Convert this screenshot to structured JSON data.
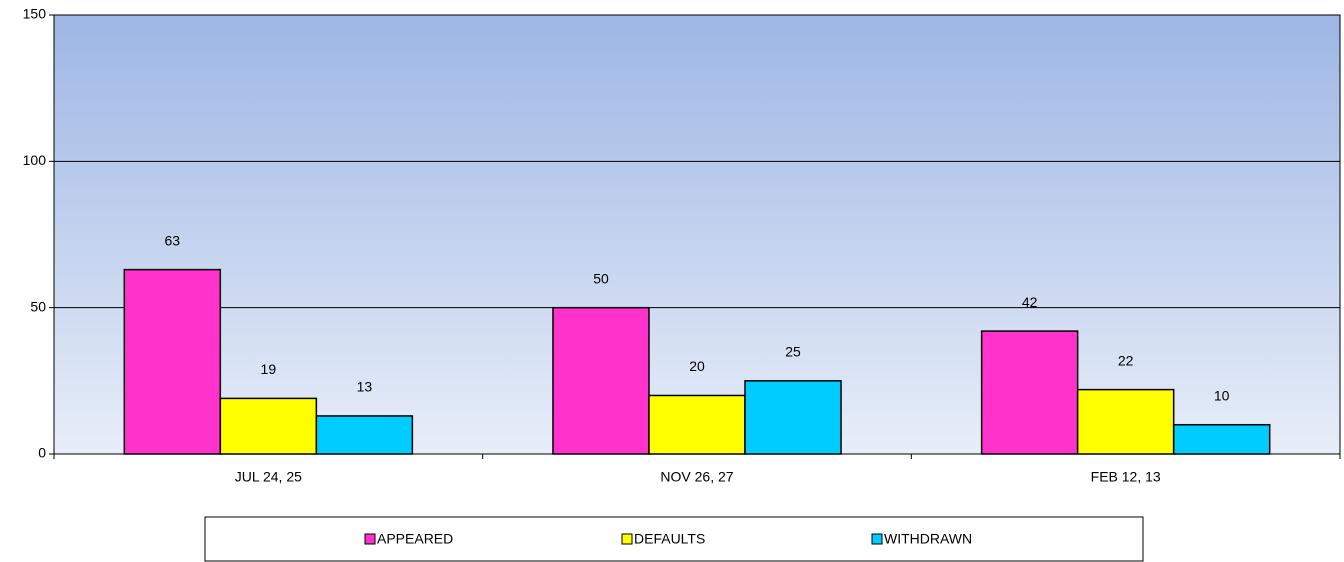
{
  "chart_data": {
    "type": "bar",
    "categories": [
      "JUL 24, 25",
      "NOV 26, 27",
      "FEB 12, 13"
    ],
    "series": [
      {
        "name": "APPEARED",
        "color": "#ff33cc",
        "values": [
          63,
          50,
          42
        ]
      },
      {
        "name": "DEFAULTS",
        "color": "#ffff00",
        "values": [
          19,
          20,
          22
        ]
      },
      {
        "name": "WITHDRAWN",
        "color": "#00ccff",
        "values": [
          13,
          25,
          10
        ]
      }
    ],
    "ylim": [
      0,
      150
    ],
    "yticks": [
      0,
      50,
      100,
      150
    ],
    "grid": true,
    "legend": "bottom"
  }
}
